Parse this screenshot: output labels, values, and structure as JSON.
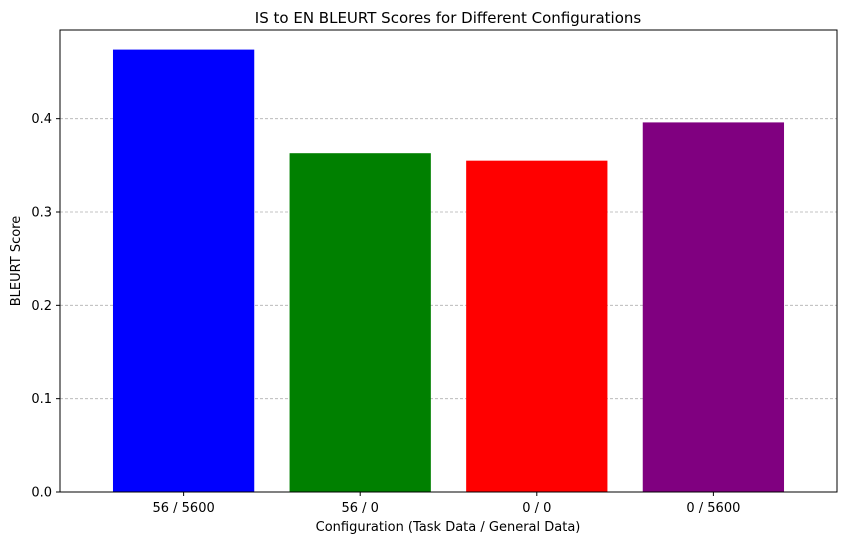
{
  "chart_data": {
    "type": "bar",
    "title": "IS to EN BLEURT Scores for Different Configurations",
    "xlabel": "Configuration (Task Data / General Data)",
    "ylabel": "BLEURT Score",
    "categories": [
      "56 / 5600",
      "56 / 0",
      "0 / 0",
      "0 / 5600"
    ],
    "values": [
      0.474,
      0.363,
      0.355,
      0.396
    ],
    "colors": [
      "#0000ff",
      "#008000",
      "#ff0000",
      "#800080"
    ],
    "ylim": [
      0,
      0.495
    ],
    "yticks": [
      0.0,
      0.1,
      0.2,
      0.3,
      0.4
    ],
    "ytick_labels": [
      "0.0",
      "0.1",
      "0.2",
      "0.3",
      "0.4"
    ],
    "grid": "y-dashed",
    "legend": "none"
  }
}
